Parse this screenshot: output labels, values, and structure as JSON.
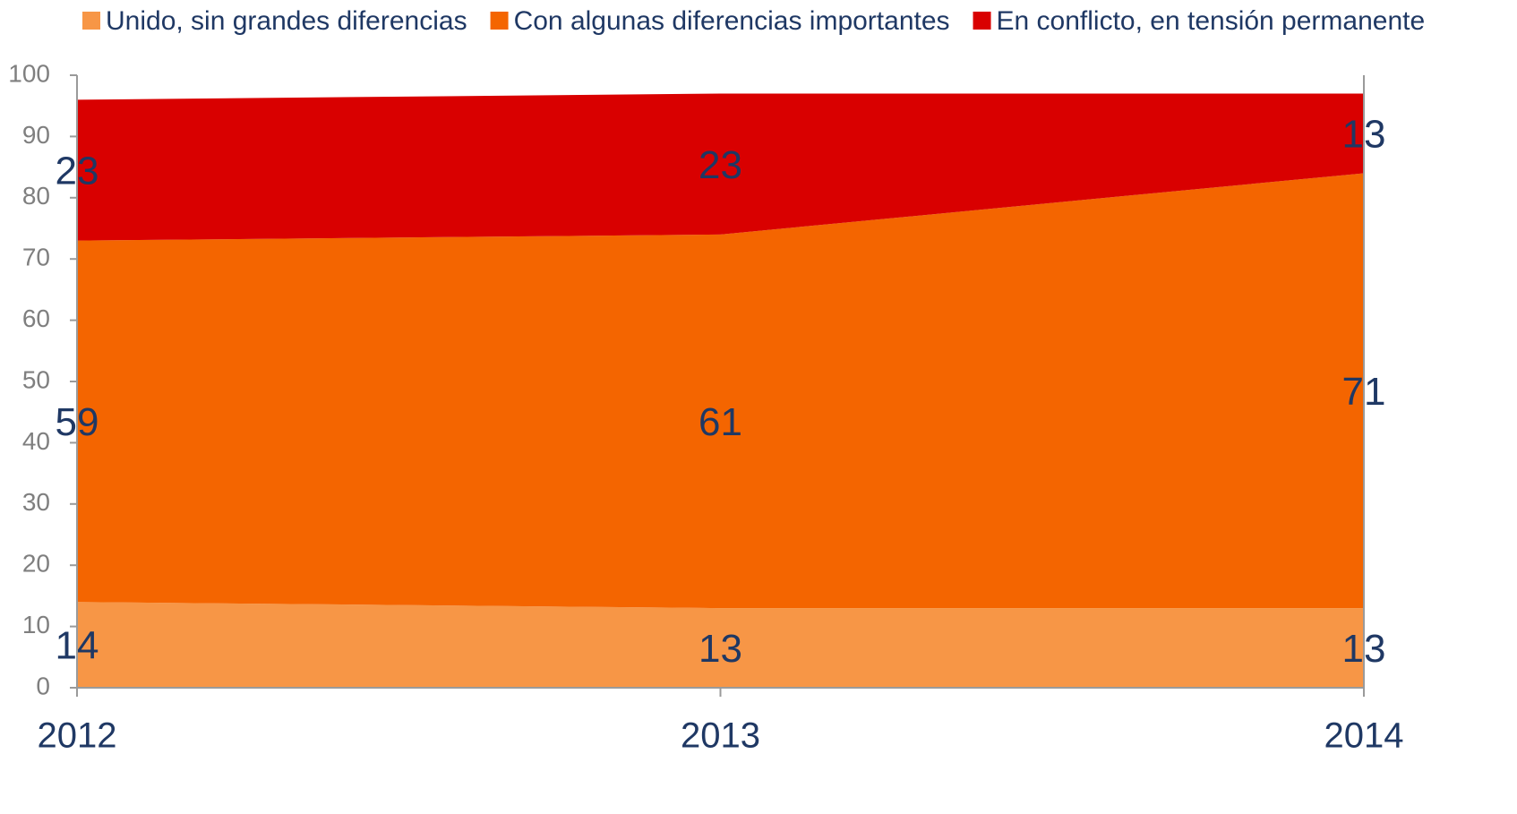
{
  "chart_data": {
    "type": "stacked_area",
    "categories": [
      "2012",
      "2013",
      "2014"
    ],
    "series": [
      {
        "name": "Unido, sin grandes diferencias",
        "color": "#f79646",
        "values": [
          14,
          13,
          13
        ]
      },
      {
        "name": "Con algunas diferencias importantes",
        "color": "#f46500",
        "values": [
          59,
          61,
          71
        ]
      },
      {
        "name": "En conflicto, en tensión permanente",
        "color": "#d90000",
        "values": [
          23,
          23,
          13
        ]
      }
    ],
    "ylim": [
      0,
      100
    ],
    "yticks": [
      0,
      10,
      20,
      30,
      40,
      50,
      60,
      70,
      80,
      90,
      100
    ],
    "legend": "top"
  }
}
